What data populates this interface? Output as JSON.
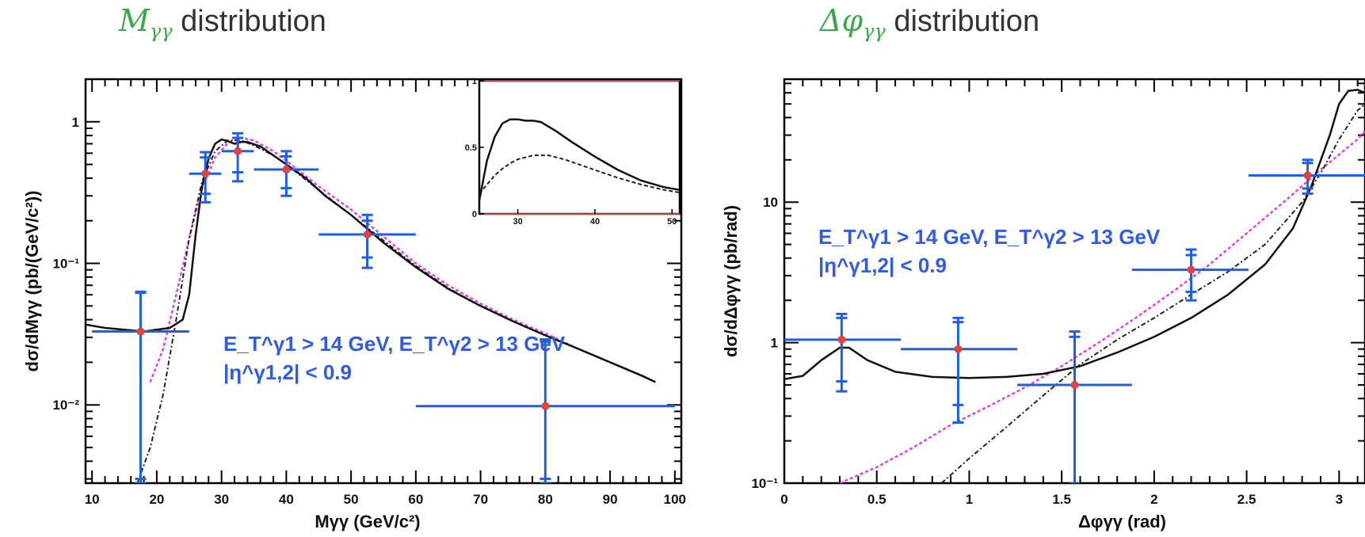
{
  "titles": [
    {
      "math": "Mγγ",
      "text": "distribution"
    },
    {
      "math": "Δφγγ",
      "text": "distribution"
    }
  ],
  "chart_data": [
    {
      "type": "scatter",
      "title": "Mγγ distribution",
      "xlabel": "Mγγ (GeV/c²)",
      "ylabel": "dσ/dMγγ (pb/(GeV/c²))",
      "xlim": [
        9,
        101
      ],
      "ylim": [
        0.0028,
        2.0
      ],
      "yscale": "log",
      "xticks": [
        10,
        20,
        30,
        40,
        50,
        60,
        70,
        80,
        90,
        100
      ],
      "yticks": [
        {
          "v": 0.01,
          "label": "10⁻²"
        },
        {
          "v": 0.1,
          "label": "10⁻¹"
        },
        {
          "v": 1,
          "label": "1"
        }
      ],
      "annotation": [
        "E_T^γ1 > 14 GeV, E_T^γ2 > 13 GeV",
        "|η^γ1,2| < 0.9"
      ],
      "data": [
        {
          "x": 17.5,
          "y": 0.033,
          "xlo": 10,
          "xhi": 25,
          "ylo": 0.0028,
          "yhi": 0.063,
          "ylo_s": 0.003,
          "yhi_s": 0.062
        },
        {
          "x": 27.5,
          "y": 0.43,
          "xlo": 25,
          "xhi": 30,
          "ylo": 0.27,
          "yhi": 0.61,
          "ylo_s": 0.31,
          "yhi_s": 0.56
        },
        {
          "x": 32.5,
          "y": 0.62,
          "xlo": 30,
          "xhi": 35,
          "ylo": 0.38,
          "yhi": 0.83,
          "ylo_s": 0.44,
          "yhi_s": 0.77
        },
        {
          "x": 40,
          "y": 0.46,
          "xlo": 35,
          "xhi": 45,
          "ylo": 0.3,
          "yhi": 0.62,
          "ylo_s": 0.34,
          "yhi_s": 0.57
        },
        {
          "x": 52.5,
          "y": 0.16,
          "xlo": 45,
          "xhi": 60,
          "ylo": 0.093,
          "yhi": 0.22,
          "ylo_s": 0.11,
          "yhi_s": 0.2
        },
        {
          "x": 80,
          "y": 0.0098,
          "xlo": 60,
          "xhi": 100,
          "ylo": 0.0028,
          "yhi": 0.029,
          "ylo_s": 0.003,
          "yhi_s": 0.028
        }
      ],
      "curves": {
        "solid": [
          [
            9,
            0.037
          ],
          [
            12,
            0.035
          ],
          [
            15,
            0.034
          ],
          [
            18,
            0.033
          ],
          [
            20,
            0.034
          ],
          [
            22,
            0.035
          ],
          [
            24,
            0.04
          ],
          [
            25,
            0.06
          ],
          [
            26,
            0.16
          ],
          [
            27,
            0.35
          ],
          [
            28,
            0.55
          ],
          [
            29,
            0.7
          ],
          [
            30,
            0.75
          ],
          [
            31,
            0.73
          ],
          [
            32,
            0.7
          ],
          [
            33,
            0.72
          ],
          [
            34,
            0.72
          ],
          [
            36,
            0.67
          ],
          [
            38,
            0.58
          ],
          [
            40,
            0.5
          ],
          [
            43,
            0.4
          ],
          [
            46,
            0.3
          ],
          [
            50,
            0.22
          ],
          [
            55,
            0.14
          ],
          [
            60,
            0.094
          ],
          [
            65,
            0.066
          ],
          [
            70,
            0.05
          ],
          [
            75,
            0.039
          ],
          [
            80,
            0.031
          ],
          [
            85,
            0.025
          ],
          [
            90,
            0.02
          ],
          [
            95,
            0.016
          ],
          [
            97,
            0.0145
          ]
        ],
        "dashed": [
          [
            17,
            0.0028
          ],
          [
            19,
            0.005
          ],
          [
            21,
            0.012
          ],
          [
            23,
            0.04
          ],
          [
            25,
            0.15
          ],
          [
            27,
            0.38
          ],
          [
            29,
            0.62
          ],
          [
            31,
            0.74
          ],
          [
            33,
            0.74
          ],
          [
            35,
            0.68
          ],
          [
            38,
            0.58
          ],
          [
            40,
            0.5
          ],
          [
            45,
            0.33
          ],
          [
            50,
            0.22
          ],
          [
            55,
            0.145
          ],
          [
            60,
            0.096
          ],
          [
            65,
            0.067
          ],
          [
            70,
            0.05
          ],
          [
            75,
            0.039
          ],
          [
            80,
            0.031
          ],
          [
            85,
            0.025
          ],
          [
            90,
            0.02
          ],
          [
            95,
            0.016
          ],
          [
            97,
            0.0145
          ]
        ],
        "magenta": [
          [
            19,
            0.0145
          ],
          [
            21,
            0.025
          ],
          [
            23,
            0.06
          ],
          [
            25,
            0.15
          ],
          [
            27,
            0.34
          ],
          [
            29,
            0.56
          ],
          [
            31,
            0.71
          ],
          [
            33,
            0.77
          ],
          [
            35,
            0.74
          ],
          [
            38,
            0.62
          ],
          [
            40,
            0.53
          ],
          [
            45,
            0.35
          ],
          [
            50,
            0.24
          ],
          [
            55,
            0.155
          ],
          [
            60,
            0.1
          ],
          [
            65,
            0.07
          ],
          [
            70,
            0.052
          ],
          [
            75,
            0.04
          ],
          [
            80,
            0.032
          ],
          [
            85,
            0.025
          ],
          [
            90,
            0.02
          ],
          [
            95,
            0.016
          ],
          [
            97,
            0.0145
          ]
        ]
      },
      "inset": {
        "xlim": [
          25,
          51
        ],
        "ylim": [
          0,
          1.0
        ],
        "xticks": [
          30,
          40,
          50
        ],
        "yticks": [
          0,
          0.5,
          1
        ],
        "solid": [
          [
            25,
            0.1
          ],
          [
            26,
            0.4
          ],
          [
            27,
            0.58
          ],
          [
            28,
            0.68
          ],
          [
            29,
            0.71
          ],
          [
            30,
            0.71
          ],
          [
            31,
            0.7
          ],
          [
            32,
            0.7
          ],
          [
            33,
            0.69
          ],
          [
            35,
            0.62
          ],
          [
            37,
            0.54
          ],
          [
            40,
            0.43
          ],
          [
            43,
            0.33
          ],
          [
            46,
            0.25
          ],
          [
            49,
            0.2
          ],
          [
            51,
            0.18
          ]
        ],
        "dashed": [
          [
            25,
            0.15
          ],
          [
            26,
            0.22
          ],
          [
            27,
            0.29
          ],
          [
            28,
            0.34
          ],
          [
            29,
            0.38
          ],
          [
            30,
            0.41
          ],
          [
            32,
            0.44
          ],
          [
            34,
            0.44
          ],
          [
            36,
            0.41
          ],
          [
            38,
            0.37
          ],
          [
            40,
            0.33
          ],
          [
            43,
            0.27
          ],
          [
            46,
            0.22
          ],
          [
            49,
            0.18
          ],
          [
            51,
            0.16
          ]
        ]
      }
    },
    {
      "type": "scatter",
      "title": "Δφγγ distribution",
      "xlabel": "Δφγγ (rad)",
      "ylabel": "dσ/dΔφγγ (pb/rad)",
      "xlim": [
        0,
        3.14
      ],
      "ylim": [
        0.1,
        75
      ],
      "yscale": "log",
      "xticks": [
        0,
        0.5,
        1,
        1.5,
        2,
        2.5,
        3
      ],
      "yticks": [
        {
          "v": 0.1,
          "label": "10⁻¹"
        },
        {
          "v": 1,
          "label": "1"
        },
        {
          "v": 10,
          "label": "10"
        }
      ],
      "annotation": [
        "E_T^γ1 > 14 GeV, E_T^γ2 > 13 GeV",
        "|η^γ1,2| < 0.9"
      ],
      "data": [
        {
          "x": 0.31,
          "y": 1.05,
          "xlo": 0,
          "xhi": 0.63,
          "ylo": 0.45,
          "yhi": 1.6,
          "ylo_s": 0.53,
          "yhi_s": 1.5
        },
        {
          "x": 0.94,
          "y": 0.9,
          "xlo": 0.63,
          "xhi": 1.26,
          "ylo": 0.27,
          "yhi": 1.5,
          "ylo_s": 0.36,
          "yhi_s": 1.4
        },
        {
          "x": 1.57,
          "y": 0.5,
          "xlo": 1.26,
          "xhi": 1.88,
          "ylo": 0.1,
          "yhi": 1.2,
          "ylo_s": 0.1,
          "yhi_s": 1.1
        },
        {
          "x": 2.2,
          "y": 3.3,
          "xlo": 1.88,
          "xhi": 2.51,
          "ylo": 2.0,
          "yhi": 4.6,
          "ylo_s": 2.3,
          "yhi_s": 4.2
        },
        {
          "x": 2.83,
          "y": 15.5,
          "xlo": 2.51,
          "xhi": 3.14,
          "ylo": 11.5,
          "yhi": 20,
          "ylo_s": 12.5,
          "yhi_s": 19
        }
      ],
      "curves": {
        "solid": [
          [
            0,
            0.55
          ],
          [
            0.1,
            0.58
          ],
          [
            0.2,
            0.75
          ],
          [
            0.3,
            0.92
          ],
          [
            0.35,
            0.92
          ],
          [
            0.45,
            0.75
          ],
          [
            0.6,
            0.62
          ],
          [
            0.8,
            0.57
          ],
          [
            1.0,
            0.56
          ],
          [
            1.2,
            0.57
          ],
          [
            1.4,
            0.6
          ],
          [
            1.6,
            0.68
          ],
          [
            1.8,
            0.85
          ],
          [
            2.0,
            1.1
          ],
          [
            2.2,
            1.5
          ],
          [
            2.4,
            2.2
          ],
          [
            2.6,
            3.6
          ],
          [
            2.75,
            6.5
          ],
          [
            2.85,
            13
          ],
          [
            2.95,
            30
          ],
          [
            3.0,
            50
          ],
          [
            3.05,
            62
          ],
          [
            3.1,
            63
          ],
          [
            3.14,
            60
          ]
        ],
        "dashed": [
          [
            0.85,
            0.1
          ],
          [
            1.0,
            0.15
          ],
          [
            1.2,
            0.25
          ],
          [
            1.4,
            0.42
          ],
          [
            1.6,
            0.7
          ],
          [
            1.8,
            1.05
          ],
          [
            2.0,
            1.5
          ],
          [
            2.2,
            2.2
          ],
          [
            2.4,
            3.2
          ],
          [
            2.6,
            5.0
          ],
          [
            2.8,
            10
          ],
          [
            2.9,
            16
          ],
          [
            3.0,
            28
          ],
          [
            3.1,
            45
          ],
          [
            3.14,
            50
          ]
        ],
        "magenta": [
          [
            0.3,
            0.1
          ],
          [
            0.5,
            0.13
          ],
          [
            0.7,
            0.18
          ],
          [
            0.9,
            0.26
          ],
          [
            1.1,
            0.35
          ],
          [
            1.3,
            0.48
          ],
          [
            1.5,
            0.68
          ],
          [
            1.7,
            1.0
          ],
          [
            1.9,
            1.5
          ],
          [
            2.1,
            2.3
          ],
          [
            2.3,
            3.6
          ],
          [
            2.5,
            6.0
          ],
          [
            2.7,
            10
          ],
          [
            2.9,
            17
          ],
          [
            3.1,
            28
          ],
          [
            3.14,
            32
          ]
        ]
      }
    }
  ]
}
